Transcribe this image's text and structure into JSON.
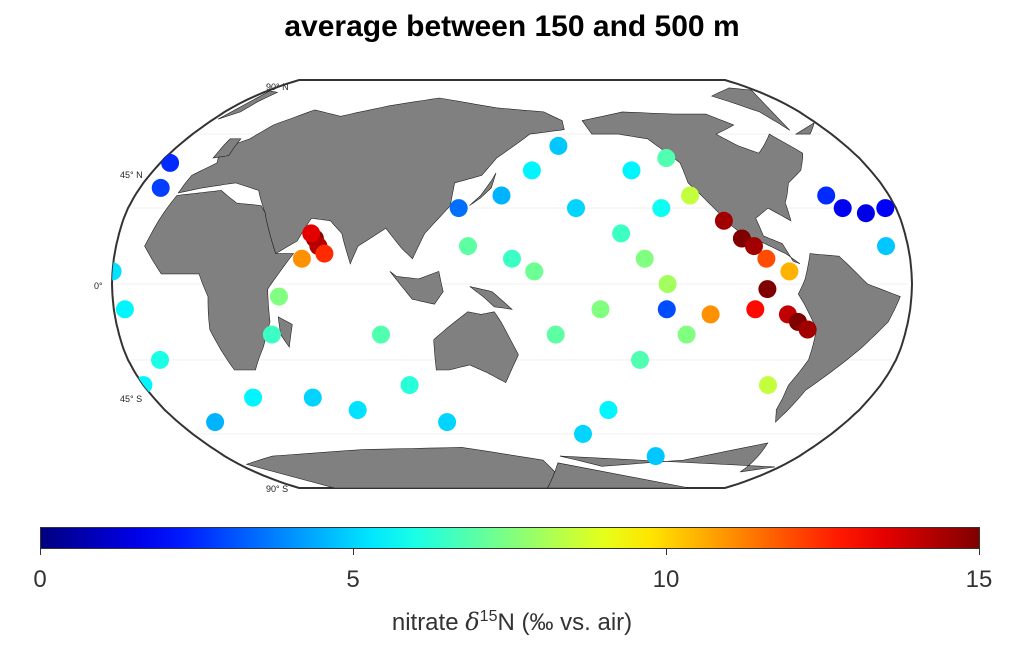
{
  "title": "average between 150 and 500 m",
  "latitude_labels": [
    {
      "id": "lat-90n",
      "text": "90° N"
    },
    {
      "id": "lat-45n",
      "text": "45° N"
    },
    {
      "id": "lat-0",
      "text": "0°"
    },
    {
      "id": "lat-45s",
      "text": "45° S"
    },
    {
      "id": "lat-90s",
      "text": "90° S"
    }
  ],
  "colorbar": {
    "min": 0,
    "max": 15,
    "ticks": [
      "0",
      "5",
      "10",
      "15"
    ],
    "label_prefix": "nitrate ",
    "label_symbol": "δ",
    "label_sup": "15",
    "label_suffix": "N (‰ vs. air)",
    "colormap": "jet"
  },
  "colors": {
    "land": "#808080",
    "ocean": "#ffffff",
    "outline": "#333333"
  },
  "chart_data": {
    "type": "scatter",
    "projection": "Robinson",
    "stations": [
      {
        "lon": -25,
        "lat": 48,
        "v": 2.5
      },
      {
        "lon": -20,
        "lat": 38,
        "v": 2.8
      },
      {
        "lon": -35,
        "lat": 30,
        "v": 1.8
      },
      {
        "lon": -45,
        "lat": 28,
        "v": 1.5
      },
      {
        "lon": -55,
        "lat": 30,
        "v": 1.7
      },
      {
        "lon": -60,
        "lat": 35,
        "v": 2.5
      },
      {
        "lon": -40,
        "lat": 15,
        "v": 4.8
      },
      {
        "lon": -30,
        "lat": 5,
        "v": 5.2
      },
      {
        "lon": -25,
        "lat": -10,
        "v": 5.5
      },
      {
        "lon": -15,
        "lat": -30,
        "v": 6.0
      },
      {
        "lon": -30,
        "lat": -40,
        "v": 5.5
      },
      {
        "lon": -10,
        "lat": -55,
        "v": 4.5
      },
      {
        "lon": 60,
        "lat": 18,
        "v": 14.8
      },
      {
        "lon": 62,
        "lat": 15,
        "v": 14.2
      },
      {
        "lon": 58,
        "lat": 20,
        "v": 13.5
      },
      {
        "lon": 65,
        "lat": 12,
        "v": 12.5
      },
      {
        "lon": 55,
        "lat": 10,
        "v": 11.0
      },
      {
        "lon": 45,
        "lat": -5,
        "v": 7.5
      },
      {
        "lon": 40,
        "lat": -20,
        "v": 6.5
      },
      {
        "lon": 20,
        "lat": -45,
        "v": 5.5
      },
      {
        "lon": 50,
        "lat": -45,
        "v": 5.0
      },
      {
        "lon": 70,
        "lat": -50,
        "v": 5.2
      },
      {
        "lon": 90,
        "lat": -20,
        "v": 6.8
      },
      {
        "lon": 100,
        "lat": -40,
        "v": 6.2
      },
      {
        "lon": 115,
        "lat": -55,
        "v": 5.0
      },
      {
        "lon": 125,
        "lat": 30,
        "v": 3.5
      },
      {
        "lon": 145,
        "lat": 35,
        "v": 4.5
      },
      {
        "lon": 160,
        "lat": 45,
        "v": 5.5
      },
      {
        "lon": 175,
        "lat": 55,
        "v": 4.8
      },
      {
        "lon": 180,
        "lat": 30,
        "v": 5.0
      },
      {
        "lon": -160,
        "lat": 20,
        "v": 6.5
      },
      {
        "lon": -150,
        "lat": 10,
        "v": 7.5
      },
      {
        "lon": -140,
        "lat": 0,
        "v": 8.0
      },
      {
        "lon": -130,
        "lat": 50,
        "v": 6.8
      },
      {
        "lon": -140,
        "lat": 30,
        "v": 5.8
      },
      {
        "lon": -150,
        "lat": 45,
        "v": 5.5
      },
      {
        "lon": -125,
        "lat": 35,
        "v": 8.5
      },
      {
        "lon": -112,
        "lat": 25,
        "v": 14.5
      },
      {
        "lon": -105,
        "lat": 18,
        "v": 15.0
      },
      {
        "lon": -100,
        "lat": 15,
        "v": 14.5
      },
      {
        "lon": -95,
        "lat": 10,
        "v": 12.0
      },
      {
        "lon": -85,
        "lat": 5,
        "v": 10.5
      },
      {
        "lon": -95,
        "lat": -2,
        "v": 15.0
      },
      {
        "lon": -120,
        "lat": -12,
        "v": 11.0
      },
      {
        "lon": -100,
        "lat": -10,
        "v": 13.0
      },
      {
        "lon": -85,
        "lat": -12,
        "v": 14.0
      },
      {
        "lon": -80,
        "lat": -15,
        "v": 15.0
      },
      {
        "lon": -75,
        "lat": -18,
        "v": 14.5
      },
      {
        "lon": -85,
        "lat": -40,
        "v": 8.5
      },
      {
        "lon": -140,
        "lat": -10,
        "v": 3.0
      },
      {
        "lon": -130,
        "lat": -20,
        "v": 7.5
      },
      {
        "lon": -150,
        "lat": -30,
        "v": 6.8
      },
      {
        "lon": -160,
        "lat": -50,
        "v": 5.5
      },
      {
        "lon": -170,
        "lat": -60,
        "v": 5.0
      },
      {
        "lon": -120,
        "lat": -70,
        "v": 4.8
      },
      {
        "lon": -170,
        "lat": -10,
        "v": 7.5
      },
      {
        "lon": 170,
        "lat": -20,
        "v": 7.0
      },
      {
        "lon": 160,
        "lat": 5,
        "v": 7.2
      },
      {
        "lon": 150,
        "lat": 10,
        "v": 6.5
      },
      {
        "lon": 130,
        "lat": 15,
        "v": 7.0
      }
    ]
  }
}
